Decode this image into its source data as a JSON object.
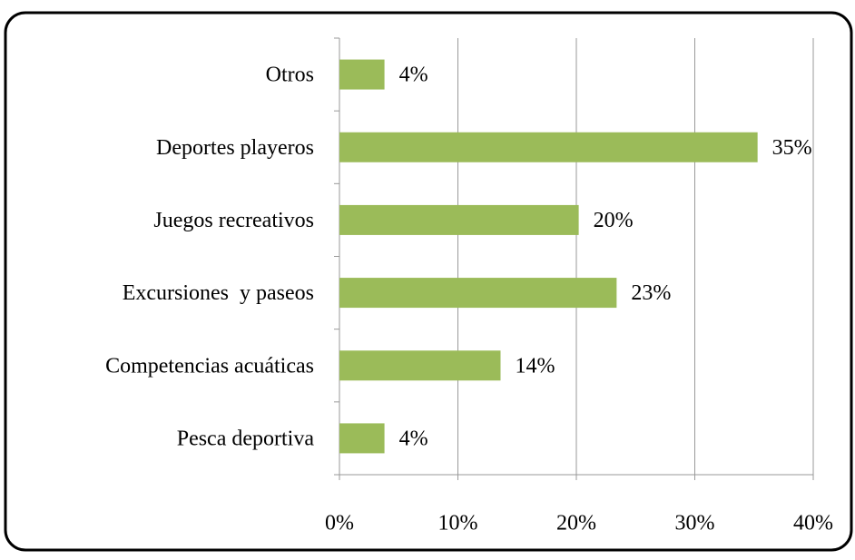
{
  "chart_data": {
    "type": "bar",
    "orientation": "horizontal",
    "categories": [
      "Otros",
      "Deportes playeros",
      "Juegos recreativos",
      "Excursiones  y paseos",
      "Competencias acuáticas",
      "Pesca deportiva"
    ],
    "values": [
      3.8,
      35.3,
      20.2,
      23.4,
      13.6,
      3.8
    ],
    "value_labels": [
      "4%",
      "35%",
      "20%",
      "23%",
      "14%",
      "4%"
    ],
    "color": "#9bbb59",
    "xlim": [
      0,
      40
    ],
    "xticks": [
      {
        "value": 0,
        "label": "0%"
      },
      {
        "value": 10,
        "label": "10%"
      },
      {
        "value": 20,
        "label": "20%"
      },
      {
        "value": 30,
        "label": "30%"
      },
      {
        "value": 40,
        "label": "40%"
      }
    ],
    "grid": true
  }
}
